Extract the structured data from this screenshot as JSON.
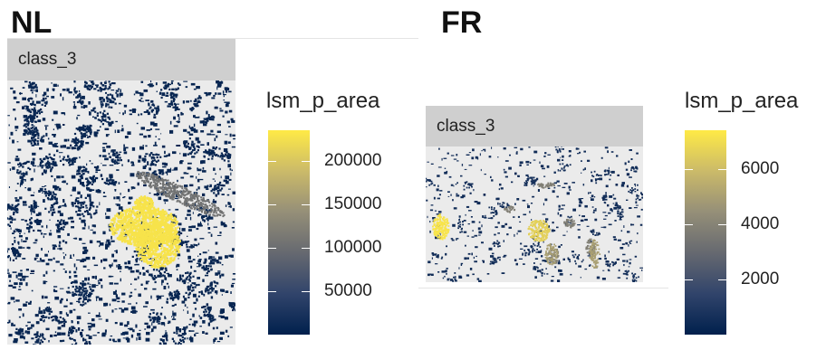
{
  "chart_data": [
    {
      "type": "heatmap",
      "title": "NL",
      "facet": "class_3",
      "legend": {
        "title": "lsm_p_area",
        "ticks": [
          50000,
          100000,
          150000,
          200000
        ],
        "tick_labels": [
          "50000",
          "100000",
          "150000",
          "200000"
        ],
        "range": [
          0,
          235000
        ],
        "colors": [
          "#00204d",
          "#31446b",
          "#666970",
          "#958f78",
          "#cbba69",
          "#ffea46"
        ]
      },
      "patches": [
        {
          "value": 228000,
          "description": "large central yellow patch"
        },
        {
          "value": 105000,
          "description": "grey diagonal band upper right"
        },
        {
          "value": 8000,
          "description": "many small dark navy patches"
        }
      ]
    },
    {
      "type": "heatmap",
      "title": "FR",
      "facet": "class_3",
      "legend": {
        "title": "lsm_p_area",
        "ticks": [
          2000,
          4000,
          6000
        ],
        "tick_labels": [
          "2000",
          "4000",
          "6000"
        ],
        "range": [
          0,
          7400
        ],
        "colors": [
          "#00204d",
          "#31446b",
          "#666970",
          "#958f78",
          "#cbba69",
          "#ffea46"
        ]
      },
      "patches": [
        {
          "value": 7200,
          "description": "yellow patch left"
        },
        {
          "value": 6600,
          "description": "yellow patch center"
        },
        {
          "value": 5000,
          "description": "olive patches lower right"
        },
        {
          "value": 3800,
          "description": "grey patches"
        },
        {
          "value": 500,
          "description": "many small dark navy patches"
        }
      ]
    }
  ]
}
